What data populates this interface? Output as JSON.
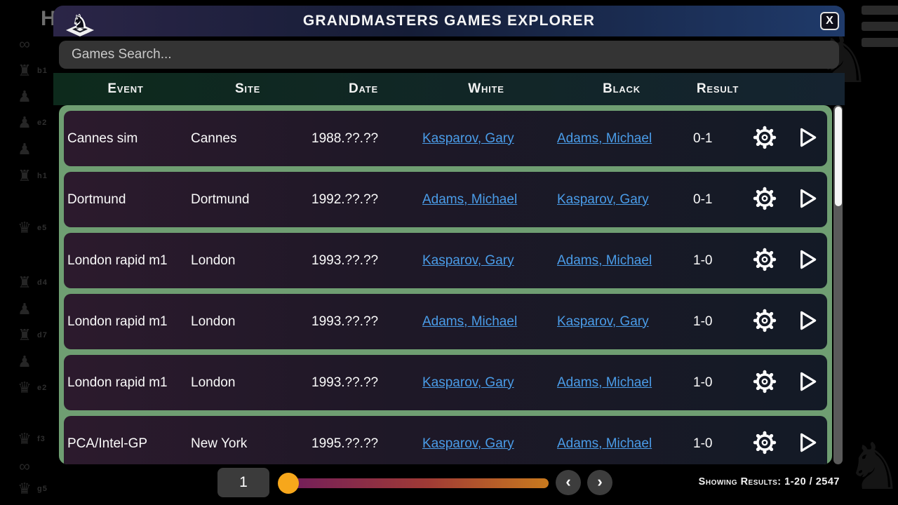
{
  "window": {
    "title": "GRANDMASTERS GAMES EXPLORER",
    "close_label": "X"
  },
  "search": {
    "placeholder": "Games Search..."
  },
  "table": {
    "headers": [
      "Event",
      "Site",
      "Date",
      "White",
      "Black",
      "Result"
    ],
    "rows": [
      {
        "event": "Cannes sim",
        "site": "Cannes",
        "date": "1988.??.??",
        "white": "Kasparov, Gary",
        "black": "Adams, Michael",
        "result": "0-1"
      },
      {
        "event": "Dortmund",
        "site": "Dortmund",
        "date": "1992.??.??",
        "white": "Adams, Michael",
        "black": "Kasparov, Gary",
        "result": "0-1"
      },
      {
        "event": "London rapid m1",
        "site": "London",
        "date": "1993.??.??",
        "white": "Kasparov, Gary",
        "black": "Adams, Michael",
        "result": "1-0"
      },
      {
        "event": "London rapid m1",
        "site": "London",
        "date": "1993.??.??",
        "white": "Adams, Michael",
        "black": "Kasparov, Gary",
        "result": "1-0"
      },
      {
        "event": "London rapid m1",
        "site": "London",
        "date": "1993.??.??",
        "white": "Kasparov, Gary",
        "black": "Adams, Michael",
        "result": "1-0"
      },
      {
        "event": "PCA/Intel-GP",
        "site": "New York",
        "date": "1995.??.??",
        "white": "Kasparov, Gary",
        "black": "Adams, Michael",
        "result": "1-0"
      }
    ]
  },
  "pagination": {
    "page": "1",
    "prev_label": "‹",
    "next_label": "›",
    "results_text": "Showing Results: 1-20 / 2547"
  },
  "icons": {
    "row_actions": [
      "gear-icon",
      "play-icon"
    ]
  },
  "colors": {
    "accent_green": "#6f9e72",
    "link_blue": "#4a9ce8",
    "slider_thumb_orange": "#f7a71b",
    "titlebar_navy": "#1f3a6a",
    "header_green": "#0d2a1c"
  },
  "background": {
    "letter": "H",
    "moves": [
      {
        "piece": "∞",
        "square": ""
      },
      {
        "piece": "♜",
        "square": "b1"
      },
      {
        "piece": "♟",
        "square": ""
      },
      {
        "piece": "♟",
        "square": "e2"
      },
      {
        "piece": "♟",
        "square": ""
      },
      {
        "piece": "♜",
        "square": "h1"
      },
      {
        "piece": "♛",
        "square": "e5"
      },
      {
        "piece": "♜",
        "square": "d4"
      },
      {
        "piece": "♟",
        "square": ""
      },
      {
        "piece": "♜",
        "square": "d7"
      },
      {
        "piece": "♟",
        "square": ""
      },
      {
        "piece": "♛",
        "square": "e2"
      },
      {
        "piece": "♛",
        "square": "f3"
      },
      {
        "piece": "∞",
        "square": ""
      },
      {
        "piece": "♛",
        "square": "g5"
      }
    ]
  }
}
